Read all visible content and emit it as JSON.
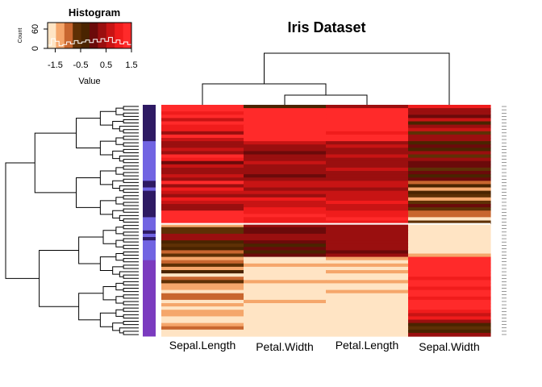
{
  "chart_data": {
    "type": "heatmap",
    "title": "Iris Dataset",
    "columns": [
      "Sepal.Length",
      "Petal.Width",
      "Petal.Length",
      "Sepal.Width"
    ],
    "color_key": {
      "title": "Histogram",
      "xlabel": "Value",
      "ylabel": "Count",
      "x_ticks": [
        "-1.5",
        "-0.5",
        "0.5",
        "1.5"
      ],
      "y_ticks": [
        "0",
        "60"
      ],
      "xlim": [
        -1.8,
        1.5
      ],
      "ylim": [
        0,
        80
      ],
      "colors": [
        "#ffe4c4",
        "#f5a66b",
        "#c8662f",
        "#5e3005",
        "#4a2400",
        "#6b0a0a",
        "#9a0f0f",
        "#c81414",
        "#f01c1c",
        "#ff2a2a"
      ],
      "histogram": [
        10,
        30,
        22,
        8,
        12,
        20,
        14,
        24,
        16,
        20,
        26,
        18,
        28,
        20,
        30,
        22,
        34,
        18,
        26,
        14,
        20,
        12
      ]
    },
    "row_groups": [
      {
        "rows": 11,
        "color": "#2e1a63"
      },
      {
        "rows": 12,
        "color": "#7164e2"
      },
      {
        "rows": 2,
        "color": "#2e1a63"
      },
      {
        "rows": 1,
        "color": "#7164e2"
      },
      {
        "rows": 1,
        "color": "#2e1a63"
      },
      {
        "rows": 7,
        "color": "#2e1a63"
      },
      {
        "rows": 4,
        "color": "#7164e2"
      },
      {
        "rows": 1,
        "color": "#2e1a63"
      },
      {
        "rows": 1,
        "color": "#7164e2"
      },
      {
        "rows": 1,
        "color": "#2e1a63"
      },
      {
        "rows": 6,
        "color": "#7164e2"
      },
      {
        "rows": 23,
        "color": "#7b3bbf"
      }
    ],
    "cluster_cut_row": 36,
    "row_count": 70,
    "values": [
      [
        1.2,
        -0.3,
        0.4,
        1.0
      ],
      [
        1.5,
        1.4,
        1.5,
        0.2
      ],
      [
        1.0,
        1.5,
        1.3,
        0.5
      ],
      [
        1.3,
        1.4,
        1.5,
        0.0
      ],
      [
        0.6,
        1.3,
        1.2,
        0.8
      ],
      [
        1.4,
        1.5,
        1.4,
        -0.3
      ],
      [
        0.9,
        1.4,
        1.5,
        0.3
      ],
      [
        1.1,
        1.3,
        1.2,
        0.6
      ],
      [
        0.5,
        1.2,
        1.1,
        -0.5
      ],
      [
        1.3,
        1.4,
        1.4,
        0.2
      ],
      [
        0.8,
        1.3,
        1.3,
        0.4
      ],
      [
        0.2,
        0.6,
        0.5,
        -0.4
      ],
      [
        0.4,
        0.2,
        0.6,
        0.1
      ],
      [
        0.6,
        0.3,
        0.4,
        -0.2
      ],
      [
        0.3,
        0.1,
        0.2,
        0.3
      ],
      [
        1.2,
        0.5,
        0.7,
        -0.6
      ],
      [
        0.9,
        0.3,
        0.5,
        0.2
      ],
      [
        0.1,
        0.6,
        0.4,
        -0.1
      ],
      [
        0.7,
        0.2,
        0.3,
        0.0
      ],
      [
        0.5,
        0.4,
        0.6,
        -0.8
      ],
      [
        0.2,
        0.3,
        0.5,
        0.1
      ],
      [
        0.8,
        0.1,
        0.3,
        -0.4
      ],
      [
        0.4,
        0.5,
        0.4,
        0.0
      ],
      [
        1.2,
        0.8,
        0.6,
        -1.0
      ],
      [
        0.5,
        0.6,
        0.7,
        -0.3
      ],
      [
        0.9,
        0.4,
        0.5,
        -1.2
      ],
      [
        0.6,
        0.7,
        0.6,
        -0.2
      ],
      [
        0.3,
        0.5,
        0.7,
        -0.7
      ],
      [
        1.1,
        0.9,
        0.8,
        -1.4
      ],
      [
        0.7,
        0.8,
        0.9,
        -0.5
      ],
      [
        0.4,
        0.6,
        0.8,
        0.1
      ],
      [
        0.2,
        0.9,
        0.7,
        -0.6
      ],
      [
        1.3,
        1.1,
        1.0,
        -1.1
      ],
      [
        1.4,
        1.2,
        1.1,
        -0.9
      ],
      [
        1.3,
        1.0,
        1.2,
        -1.5
      ],
      [
        1.4,
        1.1,
        0.9,
        -0.8
      ],
      [
        -1.2,
        0.2,
        0.3,
        -1.6
      ],
      [
        -0.8,
        0.1,
        0.2,
        -1.7
      ],
      [
        -0.6,
        -0.1,
        0.3,
        -1.5
      ],
      [
        0.5,
        0.3,
        0.4,
        -1.6
      ],
      [
        0.3,
        0.2,
        0.5,
        -1.7
      ],
      [
        -0.2,
        0.1,
        0.3,
        -1.6
      ],
      [
        -0.5,
        -0.2,
        0.2,
        -1.5
      ],
      [
        -0.3,
        0.0,
        0.4,
        -1.7
      ],
      [
        -0.9,
        -0.3,
        0.1,
        -1.6
      ],
      [
        -0.7,
        -0.1,
        0.3,
        -1.4
      ],
      [
        -1.4,
        -1.7,
        -1.4,
        1.4
      ],
      [
        -1.1,
        -1.6,
        -1.5,
        1.5
      ],
      [
        -0.6,
        -1.4,
        -1.3,
        1.3
      ],
      [
        -1.3,
        -1.7,
        -1.6,
        1.5
      ],
      [
        -0.4,
        -1.5,
        -1.4,
        1.2
      ],
      [
        -1.5,
        -1.6,
        -1.5,
        1.4
      ],
      [
        -1.0,
        -1.7,
        -1.6,
        1.1
      ],
      [
        -0.8,
        -1.4,
        -1.3,
        1.5
      ],
      [
        -1.4,
        -1.6,
        -1.5,
        1.3
      ],
      [
        -1.2,
        -1.7,
        -1.6,
        1.0
      ],
      [
        -1.6,
        -1.5,
        -1.4,
        1.4
      ],
      [
        -1.1,
        -1.7,
        -1.6,
        1.5
      ],
      [
        -0.9,
        -1.6,
        -1.5,
        0.9
      ],
      [
        -1.5,
        -1.4,
        -1.5,
        1.3
      ],
      [
        -1.3,
        -1.7,
        -1.6,
        1.2
      ],
      [
        -1.6,
        -1.7,
        -1.6,
        1.4
      ],
      [
        -1.4,
        -1.6,
        -1.7,
        1.0
      ],
      [
        -1.2,
        -1.7,
        -1.6,
        0.8
      ],
      [
        -1.5,
        -1.6,
        -1.5,
        1.1
      ],
      [
        -1.7,
        -1.7,
        -1.6,
        0.5
      ],
      [
        -1.3,
        -1.6,
        -1.7,
        -0.2
      ],
      [
        -1.1,
        -1.7,
        -1.6,
        -0.5
      ],
      [
        -1.6,
        -1.7,
        -1.6,
        -0.3
      ],
      [
        -1.5,
        -1.6,
        -1.7,
        0.2
      ]
    ]
  }
}
